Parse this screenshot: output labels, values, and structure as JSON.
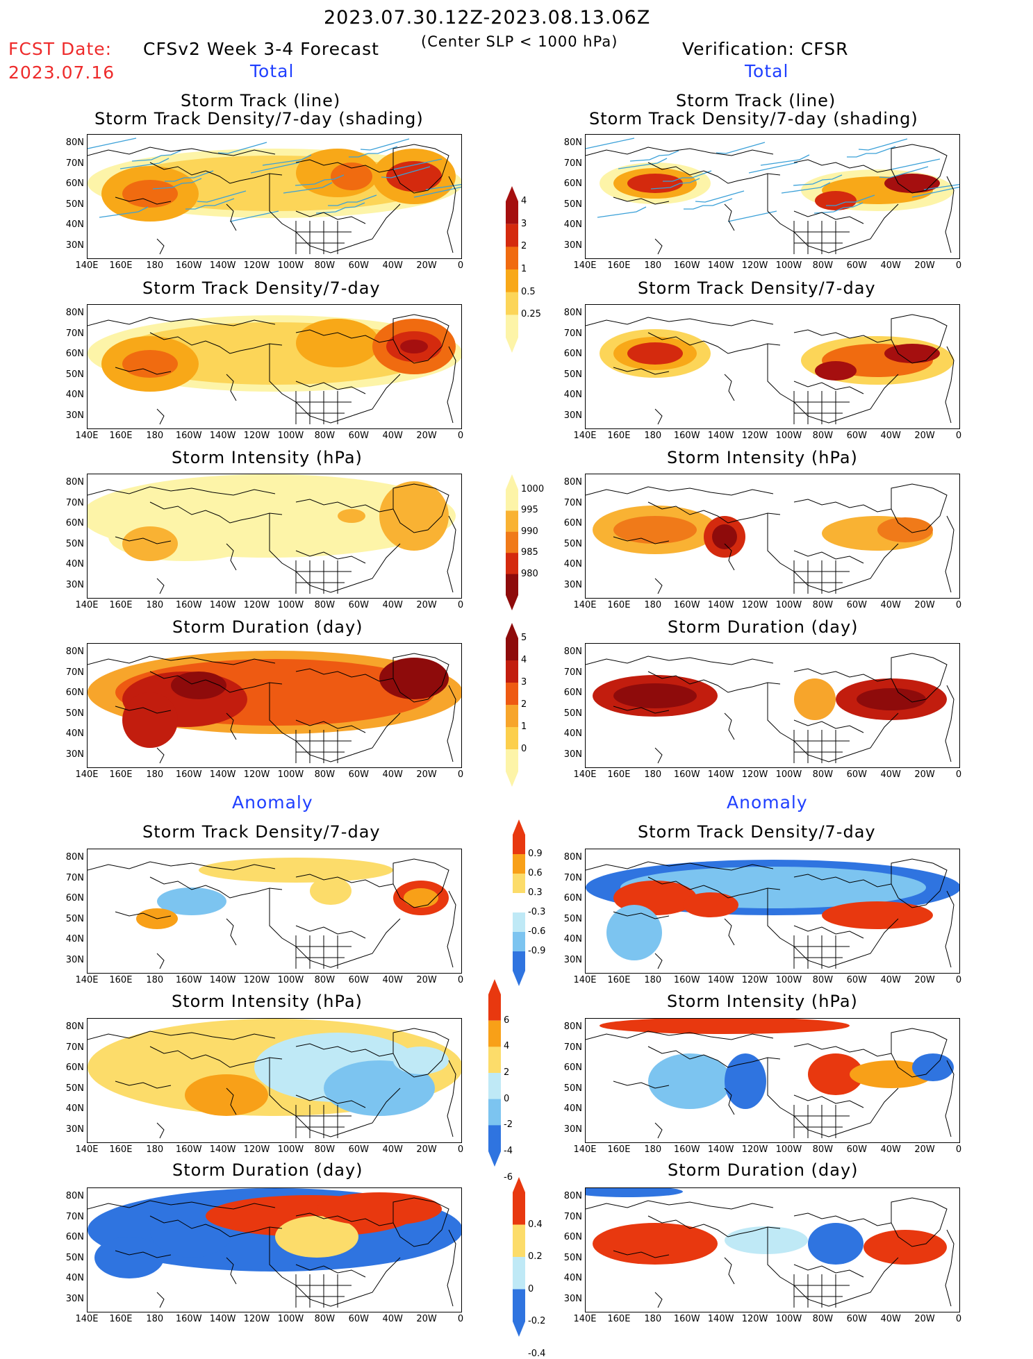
{
  "header": {
    "period": "2023.07.30.12Z-2023.08.13.06Z",
    "fcst_label": "FCST Date:",
    "fcst_date": "2023.07.16",
    "model": "CFSv2 Week 3-4 Forecast",
    "criterion": "(Center SLP < 1000 hPa)",
    "verification": "Verification: CFSR",
    "total_left": "Total",
    "total_right": "Total",
    "anomaly_left": "Anomaly",
    "anomaly_right": "Anomaly"
  },
  "panel_titles": {
    "track_line": "Storm Track (line)",
    "track_density_shading": "Storm Track Density/7-day (shading)",
    "track_density": "Storm Track Density/7-day",
    "intensity": "Storm Intensity (hPa)",
    "duration": "Storm Duration (day)"
  },
  "axes": {
    "lat_labels": [
      "80N",
      "70N",
      "60N",
      "50N",
      "40N",
      "30N"
    ],
    "lon_labels": [
      "140E",
      "160E",
      "180",
      "160W",
      "140W",
      "120W",
      "100W",
      "80W",
      "60W",
      "40W",
      "20W",
      "0"
    ]
  },
  "colorbars": {
    "density": {
      "labels": [
        "4",
        "3",
        "2",
        "1",
        "0.5",
        "0.25"
      ],
      "colors": [
        "#a50f0f",
        "#d42a0e",
        "#f06b10",
        "#f8a818",
        "#fcd558",
        "#fdf4a8"
      ]
    },
    "intensity": {
      "labels": [
        "1000",
        "995",
        "990",
        "985",
        "980"
      ],
      "colors": [
        "#fdf4a8",
        "#f9b233",
        "#f07a19",
        "#d42a0e",
        "#8e0b0b"
      ]
    },
    "duration": {
      "labels": [
        "5",
        "4",
        "3",
        "2",
        "1",
        "0"
      ],
      "colors": [
        "#8e0b0b",
        "#c21d0e",
        "#ee5a12",
        "#f7a52b",
        "#fccf4c",
        "#fdf4a8"
      ]
    },
    "anom_density": {
      "labels": [
        "0.9",
        "0.6",
        "0.3",
        "-0.3",
        "-0.6",
        "-0.9"
      ],
      "colors": [
        "#e8380f",
        "#f8a018",
        "#fcdc6a",
        "#ffffff",
        "#bfe9f6",
        "#7cc4f0",
        "#2f74e0"
      ]
    },
    "anom_intensity": {
      "labels": [
        "6",
        "4",
        "2",
        "0",
        "-2",
        "-4",
        "-6"
      ],
      "colors": [
        "#e8380f",
        "#f8a018",
        "#fcdc6a",
        "#bfe9f6",
        "#7cc4f0",
        "#2f74e0"
      ]
    },
    "anom_duration": {
      "labels": [
        "0.4",
        "0.2",
        "0",
        "-0.2",
        "-0.4"
      ],
      "colors": [
        "#e8380f",
        "#fcdc6a",
        "#bfe9f6",
        "#2f74e0"
      ]
    }
  },
  "colors": {
    "track_line": "#3aa0d8",
    "map_outline": "#000000",
    "header_red": "#ee2b2b",
    "header_blue": "#1f3fff"
  }
}
